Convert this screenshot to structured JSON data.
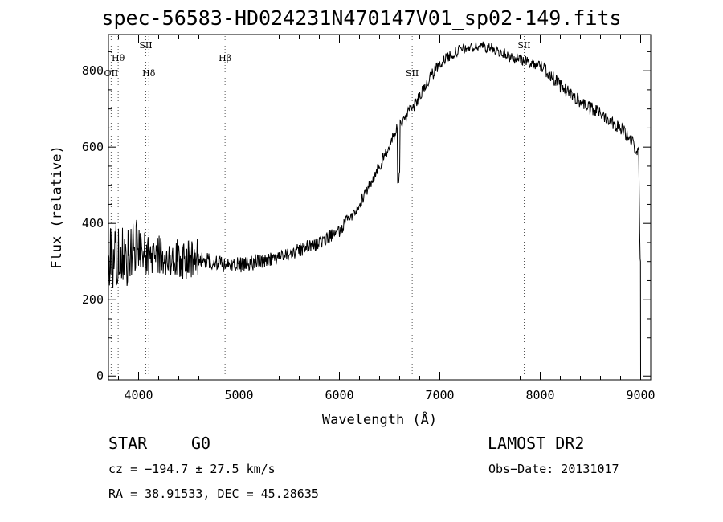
{
  "title": "spec-56583-HD024231N470147V01_sp02-149.fits",
  "chart_data": {
    "type": "line",
    "title": "spec-56583-HD024231N470147V01_sp02-149.fits",
    "xlabel": "Wavelength (Å)",
    "ylabel": "Flux (relative)",
    "xlim": [
      3700,
      9100
    ],
    "ylim": [
      -10,
      895
    ],
    "xticks": [
      4000,
      5000,
      6000,
      7000,
      8000,
      9000
    ],
    "yticks": [
      0,
      200,
      400,
      600,
      800
    ],
    "line_markers": [
      {
        "name": "Hθ",
        "x": 3797
      },
      {
        "name": "OII",
        "x": 3727
      },
      {
        "name": "SII",
        "x": 4072
      },
      {
        "name": "Hδ",
        "x": 4102
      },
      {
        "name": "Hβ",
        "x": 4861
      },
      {
        "name": "SII",
        "x": 6725
      },
      {
        "name": "SII",
        "x": 7840
      }
    ],
    "series": [
      {
        "x": [
          3700,
          3800,
          3900,
          4000,
          4100,
          4200,
          4300,
          4400,
          4500,
          4600,
          4700,
          4800,
          4900,
          5000,
          5200,
          5400,
          5600,
          5800,
          6000,
          6200,
          6400,
          6600,
          6750,
          6850,
          7000,
          7100,
          7200,
          7300,
          7400,
          7500,
          7600,
          7700,
          7800,
          7900,
          8000,
          8100,
          8200,
          8300,
          8400,
          8500,
          8600,
          8700,
          8800,
          8900,
          8980,
          8995,
          9000
        ],
        "y": [
          310,
          320,
          315,
          330,
          315,
          320,
          315,
          310,
          305,
          305,
          300,
          295,
          290,
          290,
          300,
          310,
          330,
          350,
          380,
          450,
          550,
          660,
          710,
          760,
          820,
          840,
          855,
          860,
          865,
          860,
          850,
          835,
          830,
          820,
          815,
          790,
          760,
          740,
          720,
          700,
          690,
          670,
          650,
          620,
          585,
          300,
          10
        ]
      }
    ],
    "grid": false,
    "legend": "none"
  },
  "footer": {
    "object_class": "STAR",
    "subclass": "G0",
    "survey": "LAMOST DR2",
    "redshift": "cz = −194.7 ± 27.5 km/s",
    "obs_date": "Obs−Date: 20131017",
    "coords": "RA =  38.91533, DEC =  45.28635"
  }
}
